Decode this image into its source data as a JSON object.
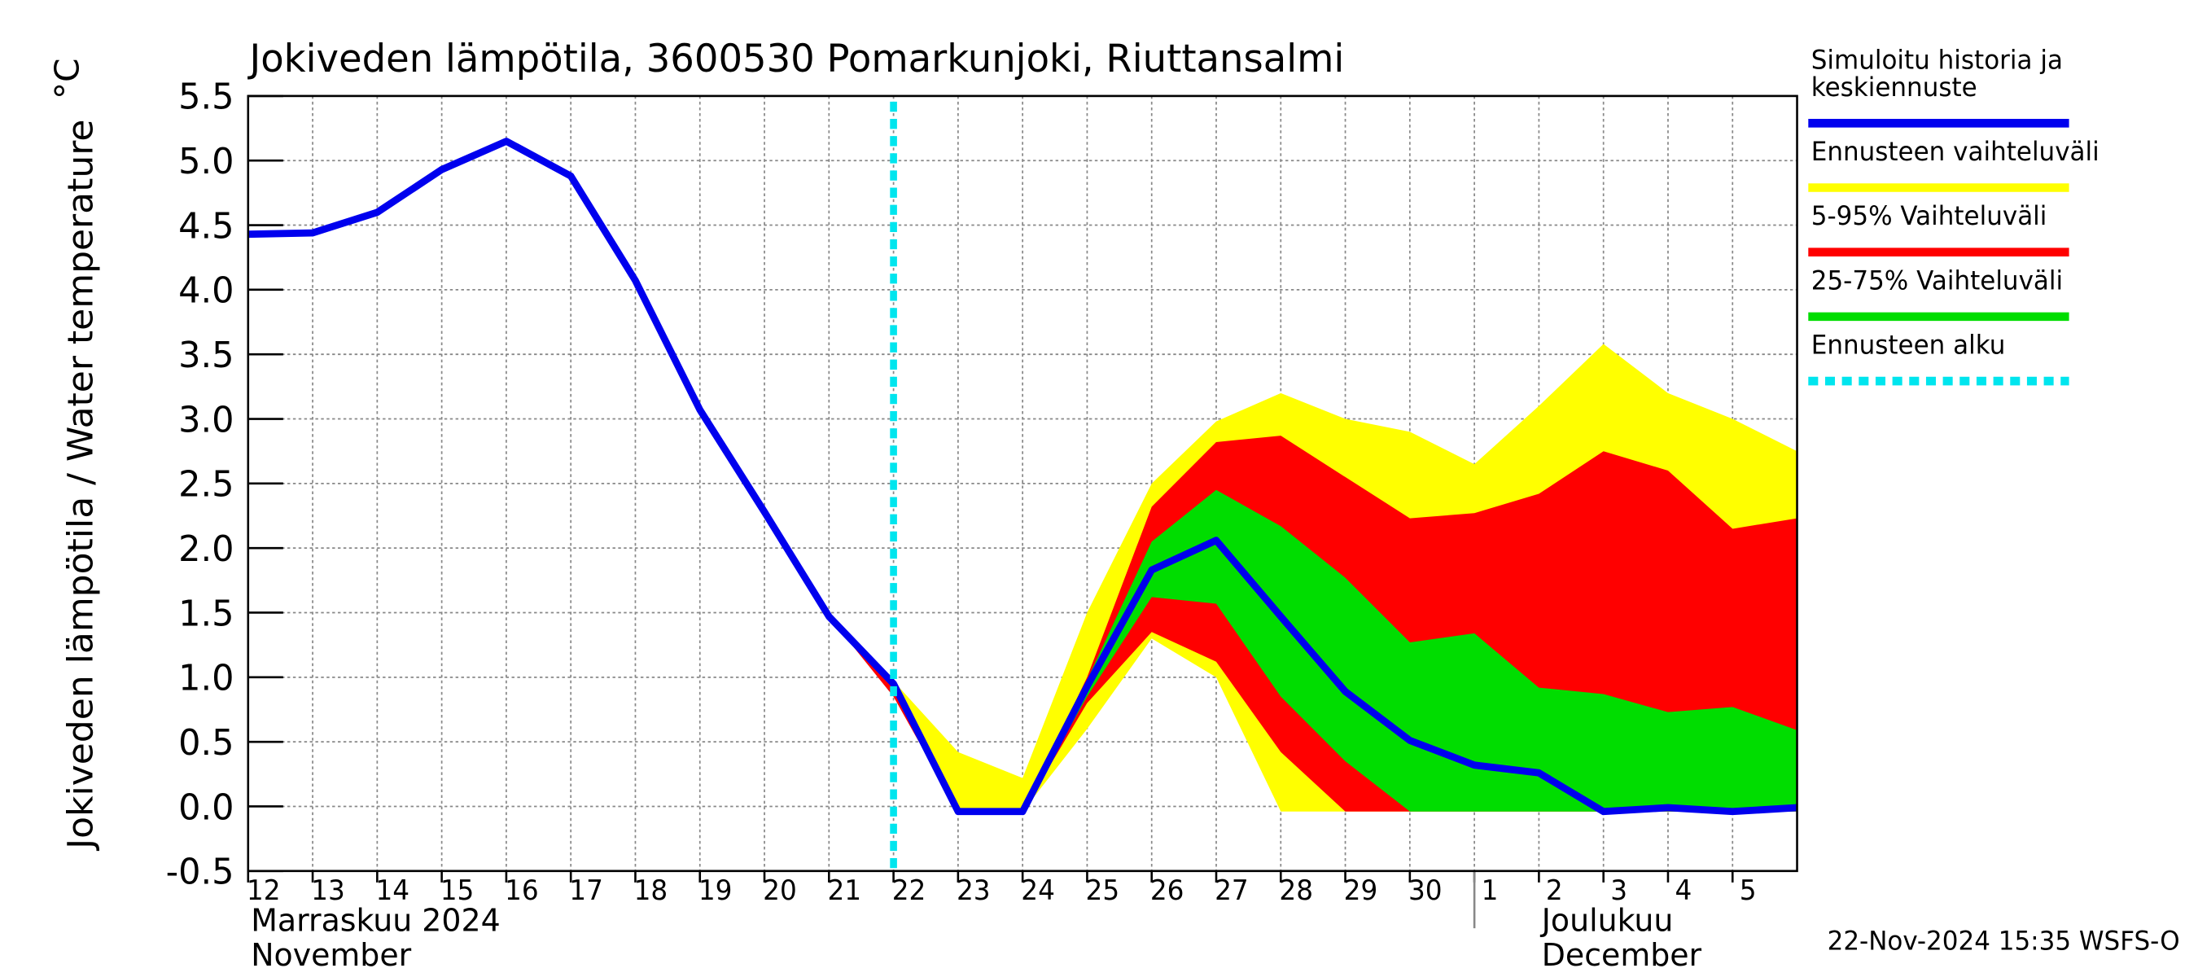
{
  "chart_data": {
    "type": "line",
    "title": "Jokiveden lämpötila, 3600530 Pomarkunjoki, Riuttansalmi",
    "y_label": "Jokiveden lämpötila / Water temperature",
    "y_unit": "°C",
    "month_labels": [
      {
        "x": "2024-11-12",
        "label": "Marraskuu 2024\nNovember"
      },
      {
        "x": "2024-12-01",
        "label": "Joulukuu\nDecember"
      }
    ],
    "footer": "22-Nov-2024 15:35 WSFS-O",
    "grid": true,
    "x": [
      "2024-11-12",
      "2024-11-13",
      "2024-11-14",
      "2024-11-15",
      "2024-11-16",
      "2024-11-17",
      "2024-11-18",
      "2024-11-19",
      "2024-11-20",
      "2024-11-21",
      "2024-11-22",
      "2024-11-23",
      "2024-11-24",
      "2024-11-25",
      "2024-11-26",
      "2024-11-27",
      "2024-11-28",
      "2024-11-29",
      "2024-11-30",
      "2024-12-01",
      "2024-12-02",
      "2024-12-03",
      "2024-12-04",
      "2024-12-05",
      "2024-12-06"
    ],
    "xlim": [
      "2024-11-12",
      "2024-12-06"
    ],
    "xticks": [
      {
        "value": "2024-11-12",
        "label": "12"
      },
      {
        "value": "2024-11-13",
        "label": "13"
      },
      {
        "value": "2024-11-14",
        "label": "14"
      },
      {
        "value": "2024-11-15",
        "label": "15"
      },
      {
        "value": "2024-11-16",
        "label": "16"
      },
      {
        "value": "2024-11-17",
        "label": "17"
      },
      {
        "value": "2024-11-18",
        "label": "18"
      },
      {
        "value": "2024-11-19",
        "label": "19"
      },
      {
        "value": "2024-11-20",
        "label": "20"
      },
      {
        "value": "2024-11-21",
        "label": "21"
      },
      {
        "value": "2024-11-22",
        "label": "22"
      },
      {
        "value": "2024-11-23",
        "label": "23"
      },
      {
        "value": "2024-11-24",
        "label": "24"
      },
      {
        "value": "2024-11-25",
        "label": "25"
      },
      {
        "value": "2024-11-26",
        "label": "26"
      },
      {
        "value": "2024-11-27",
        "label": "27"
      },
      {
        "value": "2024-11-28",
        "label": "28"
      },
      {
        "value": "2024-11-29",
        "label": "29"
      },
      {
        "value": "2024-11-30",
        "label": "30"
      },
      {
        "value": "2024-12-01",
        "label": "1"
      },
      {
        "value": "2024-12-02",
        "label": "2"
      },
      {
        "value": "2024-12-03",
        "label": "3"
      },
      {
        "value": "2024-12-04",
        "label": "4"
      },
      {
        "value": "2024-12-05",
        "label": "5"
      }
    ],
    "ylim": [
      -0.5,
      5.5
    ],
    "yticks": [
      -0.5,
      {
        "value": 0,
        "label": "0.0"
      },
      0.5,
      {
        "value": 1,
        "label": "1.0"
      },
      1.5,
      {
        "value": 2,
        "label": "2.0"
      },
      2.5,
      {
        "value": 3,
        "label": "3.0"
      },
      3.5,
      {
        "value": 4,
        "label": "4.0"
      },
      4.5,
      {
        "value": 5,
        "label": "5.0"
      },
      5.5
    ],
    "series": [
      {
        "name": "Simuloitu historia ja\nkeskiennuste",
        "color": "#0000ee",
        "kind": "line",
        "values": [
          4.43,
          4.44,
          4.6,
          4.93,
          5.15,
          4.88,
          4.07,
          3.07,
          2.28,
          1.47,
          0.95,
          -0.04,
          -0.04,
          0.93,
          1.83,
          2.06,
          1.47,
          0.89,
          0.51,
          0.32,
          0.26,
          -0.04,
          -0.01,
          -0.04,
          -0.01
        ]
      },
      {
        "name": "Ennusteen vaihteluväli",
        "color": "#ffff00",
        "kind": "band",
        "upper": [
          null,
          null,
          null,
          null,
          null,
          null,
          null,
          null,
          null,
          1.47,
          0.97,
          0.42,
          0.22,
          1.5,
          2.5,
          2.98,
          3.2,
          3.0,
          2.9,
          2.65,
          3.1,
          3.58,
          3.2,
          3.0,
          2.75
        ],
        "lower": [
          null,
          null,
          null,
          null,
          null,
          null,
          null,
          null,
          null,
          1.47,
          0.88,
          -0.04,
          -0.04,
          0.6,
          1.3,
          1.0,
          -0.04,
          -0.04,
          -0.04,
          -0.04,
          -0.04,
          -0.04,
          -0.04,
          -0.04,
          -0.04
        ]
      },
      {
        "name": "5-95% Vaihteluväli",
        "color": "#ff0000",
        "kind": "band",
        "upper": [
          null,
          null,
          null,
          null,
          null,
          null,
          null,
          null,
          null,
          1.47,
          0.97,
          -0.04,
          -0.04,
          1.0,
          2.32,
          2.82,
          2.87,
          2.55,
          2.23,
          2.27,
          2.42,
          2.75,
          2.6,
          2.15,
          2.23
        ],
        "lower": [
          null,
          null,
          null,
          null,
          null,
          null,
          null,
          null,
          null,
          1.47,
          0.85,
          -0.04,
          -0.04,
          0.8,
          1.35,
          1.12,
          0.42,
          -0.04,
          -0.04,
          -0.04,
          -0.04,
          -0.04,
          -0.04,
          -0.04,
          -0.04
        ]
      },
      {
        "name": "25-75% Vaihteluväli",
        "color": "#00dd00",
        "kind": "band",
        "upper": [
          null,
          null,
          null,
          null,
          null,
          null,
          null,
          null,
          null,
          1.47,
          0.95,
          -0.04,
          -0.04,
          0.98,
          2.05,
          2.45,
          2.17,
          1.77,
          1.27,
          1.34,
          0.92,
          0.87,
          0.73,
          0.77,
          0.59
        ],
        "lower": [
          null,
          null,
          null,
          null,
          null,
          null,
          null,
          null,
          null,
          1.47,
          0.95,
          -0.04,
          -0.04,
          0.85,
          1.62,
          1.57,
          0.85,
          0.35,
          -0.04,
          -0.04,
          -0.04,
          -0.04,
          -0.04,
          -0.04,
          -0.04
        ]
      }
    ],
    "forecast_start": {
      "name": "Ennusteen alku",
      "color": "#00e5ee",
      "x": "2024-11-22"
    }
  }
}
